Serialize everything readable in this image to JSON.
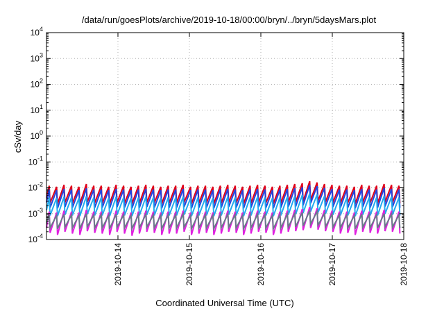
{
  "chart_data": {
    "type": "line",
    "title": "/data/run/goesPlots/archive/2019-10-18/00:00/bryn/../bryn/5daysMars.plot",
    "xlabel": "Coordinated Universal Time (UTC)",
    "ylabel": "cSv/day",
    "yscale": "log",
    "ylim": [
      0.0001,
      10000
    ],
    "xlim": [
      "2019-10-13 00:00",
      "2019-10-18 00:00"
    ],
    "x_ticks": [
      "2019-10-14",
      "2019-10-15",
      "2019-10-16",
      "2019-10-17",
      "2019-10-18"
    ],
    "y_ticks": [
      {
        "base": "10",
        "exp": "4"
      },
      {
        "base": "10",
        "exp": "3"
      },
      {
        "base": "10",
        "exp": "2"
      },
      {
        "base": "10",
        "exp": "1"
      },
      {
        "base": "10",
        "exp": "0"
      },
      {
        "base": "10",
        "exp": "-1"
      },
      {
        "base": "10",
        "exp": "-2"
      },
      {
        "base": "10",
        "exp": "-3"
      },
      {
        "base": "10",
        "exp": "-4"
      }
    ],
    "grid": true,
    "sawtooth_period_hours": 2.5,
    "series": [
      {
        "color": "#e0001a",
        "peak_values": [
          0.012,
          0.011,
          0.013,
          0.012,
          0.011,
          0.014,
          0.012,
          0.012,
          0.011,
          0.013,
          0.012,
          0.011,
          0.012,
          0.013,
          0.012,
          0.011,
          0.012,
          0.012,
          0.013,
          0.011,
          0.012,
          0.012,
          0.011,
          0.012,
          0.013,
          0.012,
          0.011,
          0.012,
          0.013,
          0.012,
          0.011,
          0.012,
          0.013,
          0.014,
          0.015,
          0.018,
          0.016,
          0.014,
          0.013,
          0.012,
          0.012,
          0.011,
          0.013,
          0.012,
          0.012,
          0.014,
          0.013,
          0.012,
          0.02
        ],
        "trough_values": [
          0.0026,
          0.0024,
          0.0027,
          0.0025,
          0.0024,
          0.0028,
          0.0026,
          0.0025,
          0.0024,
          0.0027,
          0.0025,
          0.0024,
          0.0025,
          0.0027,
          0.0026,
          0.0024,
          0.0025,
          0.0026,
          0.0027,
          0.0024,
          0.0025,
          0.0026,
          0.0024,
          0.0025,
          0.0027,
          0.0026,
          0.0024,
          0.0025,
          0.0027,
          0.0026,
          0.0024,
          0.0025,
          0.0027,
          0.0028,
          0.003,
          0.0034,
          0.0031,
          0.0028,
          0.0027,
          0.0025,
          0.0026,
          0.0024,
          0.0027,
          0.0026,
          0.0025,
          0.0028,
          0.0027,
          0.0025,
          0.0036
        ]
      },
      {
        "color": "#2244dd",
        "peak_values": [
          0.0085,
          0.008,
          0.009,
          0.0085,
          0.008,
          0.0095,
          0.0085,
          0.0085,
          0.008,
          0.009,
          0.0085,
          0.008,
          0.0085,
          0.009,
          0.0085,
          0.008,
          0.0085,
          0.0085,
          0.009,
          0.008,
          0.0085,
          0.0085,
          0.008,
          0.0085,
          0.009,
          0.0085,
          0.008,
          0.0085,
          0.009,
          0.0085,
          0.008,
          0.0085,
          0.009,
          0.0095,
          0.0105,
          0.013,
          0.0115,
          0.0098,
          0.009,
          0.0085,
          0.0085,
          0.008,
          0.009,
          0.0085,
          0.0085,
          0.0098,
          0.009,
          0.0085,
          0.014
        ],
        "trough_values": [
          0.0017,
          0.0016,
          0.0018,
          0.0017,
          0.0016,
          0.0019,
          0.0017,
          0.0017,
          0.0016,
          0.0018,
          0.0017,
          0.0016,
          0.0017,
          0.0018,
          0.0017,
          0.0016,
          0.0017,
          0.0017,
          0.0018,
          0.0016,
          0.0017,
          0.0017,
          0.0016,
          0.0017,
          0.0018,
          0.0017,
          0.0016,
          0.0017,
          0.0018,
          0.0017,
          0.0016,
          0.0017,
          0.0018,
          0.0019,
          0.0021,
          0.0025,
          0.0022,
          0.0019,
          0.0018,
          0.0017,
          0.0017,
          0.0016,
          0.0018,
          0.0017,
          0.0017,
          0.0019,
          0.0018,
          0.0017,
          0.0026
        ]
      },
      {
        "color": "#22aaee",
        "peak_values": [
          0.0042,
          0.004,
          0.0045,
          0.0042,
          0.004,
          0.0047,
          0.0042,
          0.0042,
          0.004,
          0.0045,
          0.0042,
          0.004,
          0.0042,
          0.0045,
          0.0042,
          0.004,
          0.0042,
          0.0042,
          0.0045,
          0.004,
          0.0042,
          0.0042,
          0.004,
          0.0042,
          0.0045,
          0.0042,
          0.004,
          0.0042,
          0.0045,
          0.0042,
          0.004,
          0.0042,
          0.0045,
          0.0047,
          0.0052,
          0.006,
          0.0055,
          0.0048,
          0.0045,
          0.0042,
          0.0042,
          0.004,
          0.0045,
          0.0042,
          0.0042,
          0.0048,
          0.0045,
          0.0042,
          0.0065
        ],
        "trough_values": [
          0.00085,
          0.0008,
          0.0009,
          0.00085,
          0.0008,
          0.00095,
          0.00085,
          0.00085,
          0.0008,
          0.0009,
          0.00085,
          0.0008,
          0.00085,
          0.0009,
          0.00085,
          0.0008,
          0.00085,
          0.00085,
          0.0009,
          0.0008,
          0.00085,
          0.00085,
          0.0008,
          0.00085,
          0.0009,
          0.00085,
          0.0008,
          0.00085,
          0.0009,
          0.00085,
          0.0008,
          0.00085,
          0.0009,
          0.00095,
          0.00105,
          0.0012,
          0.0011,
          0.00097,
          0.0009,
          0.00085,
          0.00085,
          0.0008,
          0.0009,
          0.00085,
          0.00085,
          0.00097,
          0.0009,
          0.00085,
          0.0013
        ]
      },
      {
        "color": "#e020e0",
        "peak_values": [
          0.0012,
          0.0011,
          0.0013,
          0.0012,
          0.0011,
          0.0014,
          0.0012,
          0.0012,
          0.0011,
          0.0013,
          0.0012,
          0.0011,
          0.0012,
          0.0013,
          0.0012,
          0.0011,
          0.0012,
          0.0012,
          0.0013,
          0.0011,
          0.0012,
          0.0012,
          0.0011,
          0.0012,
          0.0013,
          0.0012,
          0.0011,
          0.0012,
          0.0013,
          0.0012,
          0.0011,
          0.0012,
          0.0013,
          0.0014,
          0.0015,
          0.0018,
          0.0016,
          0.0014,
          0.0013,
          0.0012,
          0.0012,
          0.0011,
          0.0013,
          0.0012,
          0.0012,
          0.0014,
          0.0013,
          0.0012,
          0.002
        ],
        "trough_values": [
          0.00018,
          0.00015,
          0.0002,
          0.00017,
          0.00015,
          0.00021,
          0.00018,
          0.00017,
          0.00015,
          0.0002,
          0.00017,
          0.00014,
          0.00017,
          0.0002,
          0.00018,
          0.00015,
          0.00017,
          0.00017,
          0.0002,
          0.00015,
          0.00017,
          0.00018,
          0.00015,
          0.00017,
          0.0002,
          0.00018,
          0.00015,
          0.00017,
          0.0002,
          0.00018,
          0.00015,
          0.00017,
          0.0002,
          0.00021,
          0.00023,
          0.00028,
          0.00024,
          0.00021,
          0.0002,
          0.00017,
          0.00018,
          0.00015,
          0.0002,
          0.00018,
          0.00017,
          0.00021,
          0.0002,
          0.00017,
          0.0003
        ]
      },
      {
        "color": "#6a7a8a",
        "peak_values": [
          0.0009,
          0.00085,
          0.00095,
          0.0009,
          0.00085,
          0.001,
          0.0009,
          0.0009,
          0.00085,
          0.00095,
          0.0009,
          0.00085,
          0.0009,
          0.00095,
          0.0009,
          0.00085,
          0.0009,
          0.0009,
          0.00095,
          0.00085,
          0.0009,
          0.0009,
          0.00085,
          0.0009,
          0.00095,
          0.0009,
          0.00085,
          0.0009,
          0.00095,
          0.0009,
          0.00085,
          0.0009,
          0.00095,
          0.001,
          0.0011,
          0.0013,
          0.0012,
          0.001,
          0.00095,
          0.0009,
          0.0009,
          0.00085,
          0.00095,
          0.0009,
          0.0009,
          0.001,
          0.00095,
          0.0009,
          0.0014
        ],
        "trough_values": [
          0.00028,
          0.00026,
          0.0003,
          0.00028,
          0.00026,
          0.00031,
          0.00028,
          0.00028,
          0.00026,
          0.0003,
          0.00028,
          0.00026,
          0.00028,
          0.0003,
          0.00028,
          0.00026,
          0.00028,
          0.00028,
          0.0003,
          0.00026,
          0.00028,
          0.00028,
          0.00026,
          0.00028,
          0.0003,
          0.00028,
          0.00026,
          0.00028,
          0.0003,
          0.00028,
          0.00026,
          0.00028,
          0.0003,
          0.00031,
          0.00034,
          0.0004,
          0.00036,
          0.00031,
          0.0003,
          0.00028,
          0.00028,
          0.00026,
          0.0003,
          0.00028,
          0.00028,
          0.00031,
          0.0003,
          0.00028,
          0.00042
        ]
      }
    ]
  }
}
